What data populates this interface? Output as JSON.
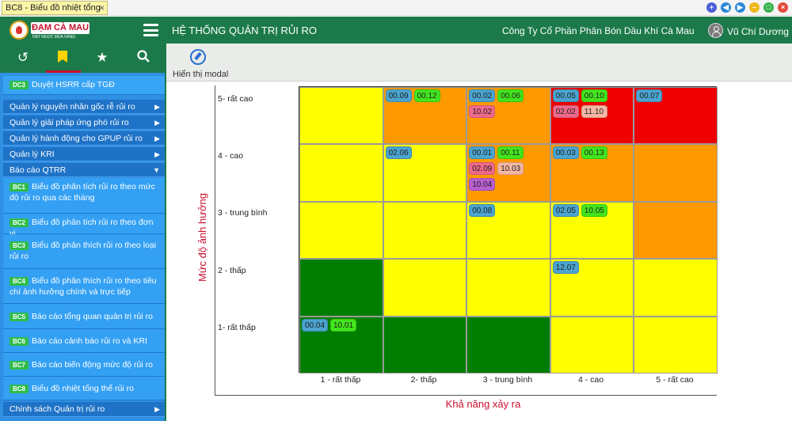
{
  "window": {
    "tab_title": "BC8 - Biểu đồ nhiệt tổng",
    "close_glyph": "×"
  },
  "header": {
    "logo_text": "ĐẠM CÀ MAU",
    "logo_sub": "HẠT NGỌC MÙA VÀNG",
    "system_name": "HỆ THỐNG QUẢN TRỊ RỦI RO",
    "company": "Công Ty Cổ Phần Phân Bón Dầu Khí Cà Mau",
    "user": "Vũ Chí Dương"
  },
  "sidebar": {
    "tab_icons": [
      "history-icon",
      "bookmark-icon",
      "star-icon",
      "search-icon"
    ],
    "top_item": {
      "badge": "DC3",
      "label": "Duyệt HSRR cấp TGĐ"
    },
    "groups": [
      {
        "label": "Quản lý nguyên nhân gốc rễ rủi ro",
        "arrow": "▶"
      },
      {
        "label": "Quản lý giải pháp ứng phó rủi ro",
        "arrow": "▶"
      },
      {
        "label": "Quản lý hành động cho GPUP rủi ro",
        "arrow": "▶"
      },
      {
        "label": "Quản lý KRI",
        "arrow": "▶"
      },
      {
        "label": "Báo cáo QTRR",
        "arrow": "▼"
      }
    ],
    "report_items": [
      {
        "badge": "BC1",
        "label": "Biểu đồ phân tích rủi ro theo mức độ rủi ro qua các tháng"
      },
      {
        "badge": "BC2",
        "label": "Biểu đồ phân tích rủi ro theo đơn vị"
      },
      {
        "badge": "BC3",
        "label": "Biểu đồ phân thích rủi ro theo loại rủi ro"
      },
      {
        "badge": "BC4",
        "label": "Biểu đồ phân thích rủi ro theo tiêu chí ảnh hưởng chính và trực tiếp"
      },
      {
        "badge": "BC5",
        "label": "Báo cáo tổng quan quản trị rủi ro"
      },
      {
        "badge": "BC6",
        "label": "Báo cáo cảnh báo rủi ro và KRI"
      },
      {
        "badge": "BC7",
        "label": "Báo cáo biến động mức độ rủi ro"
      },
      {
        "badge": "BC8",
        "label": "Biểu đồ nhiệt tổng thể rủi ro"
      }
    ],
    "last_group": {
      "label": "Chính sách Quản trị rủi ro",
      "arrow": "▶"
    }
  },
  "toolbar": {
    "show_modal_label": "Hiển thị modal"
  },
  "heatmap": {
    "y_title": "Mức độ ảnh hưởng",
    "x_title": "Khả năng xảy ra",
    "rows": [
      "5- rất cao",
      "4 - cao",
      "3 - trung bình",
      "2 - thấp",
      "1- rất thấp"
    ],
    "cols": [
      "1 - rất thấp",
      "2- thấp",
      "3 - trung bình",
      "4 - cao",
      "5 - rất cao"
    ],
    "colors": {
      "dark_green": "#017e01",
      "yellow": "#ffff00",
      "orange": "#ff9900",
      "red": "#ee0000"
    },
    "cell_colors": [
      [
        "yellow",
        "orange",
        "orange",
        "red",
        "red"
      ],
      [
        "yellow",
        "yellow",
        "orange",
        "orange",
        "orange"
      ],
      [
        "yellow",
        "yellow",
        "yellow",
        "yellow",
        "orange"
      ],
      [
        "dark_green",
        "yellow",
        "yellow",
        "yellow",
        "yellow"
      ],
      [
        "dark_green",
        "dark_green",
        "dark_green",
        "yellow",
        "yellow"
      ]
    ],
    "chip_colors": {
      "blue": "#4aa4cf",
      "green": "#42e51c",
      "pink": "#ef6a8a",
      "peach": "#f4b7a4",
      "purple": "#b85fcf"
    },
    "chips": [
      {
        "row": 0,
        "col": 1,
        "items": [
          [
            "00.09",
            "blue"
          ],
          [
            "00.12",
            "green"
          ]
        ]
      },
      {
        "row": 0,
        "col": 2,
        "items": [
          [
            "00.02",
            "blue"
          ],
          [
            "00.06",
            "green"
          ],
          [
            "10.02",
            "pink"
          ]
        ]
      },
      {
        "row": 0,
        "col": 3,
        "items": [
          [
            "00.05",
            "blue"
          ],
          [
            "00.10",
            "green"
          ],
          [
            "02.02",
            "pink"
          ],
          [
            "11.10",
            "peach"
          ]
        ]
      },
      {
        "row": 0,
        "col": 4,
        "items": [
          [
            "00.07",
            "blue"
          ]
        ]
      },
      {
        "row": 1,
        "col": 1,
        "items": [
          [
            "02.06",
            "blue"
          ]
        ]
      },
      {
        "row": 1,
        "col": 2,
        "items": [
          [
            "00.01",
            "blue"
          ],
          [
            "00.11",
            "green"
          ],
          [
            "02.09",
            "pink"
          ],
          [
            "10.03",
            "peach"
          ],
          [
            "10.04",
            "purple"
          ]
        ]
      },
      {
        "row": 1,
        "col": 3,
        "items": [
          [
            "00.03",
            "blue"
          ],
          [
            "00.13",
            "green"
          ]
        ]
      },
      {
        "row": 2,
        "col": 2,
        "items": [
          [
            "00.08",
            "blue"
          ]
        ]
      },
      {
        "row": 2,
        "col": 3,
        "items": [
          [
            "02.05",
            "blue"
          ],
          [
            "10.05",
            "green"
          ]
        ]
      },
      {
        "row": 3,
        "col": 3,
        "items": [
          [
            "12.07",
            "blue"
          ]
        ]
      },
      {
        "row": 4,
        "col": 0,
        "items": [
          [
            "00.04",
            "blue"
          ],
          [
            "10.01",
            "green"
          ]
        ]
      }
    ]
  }
}
